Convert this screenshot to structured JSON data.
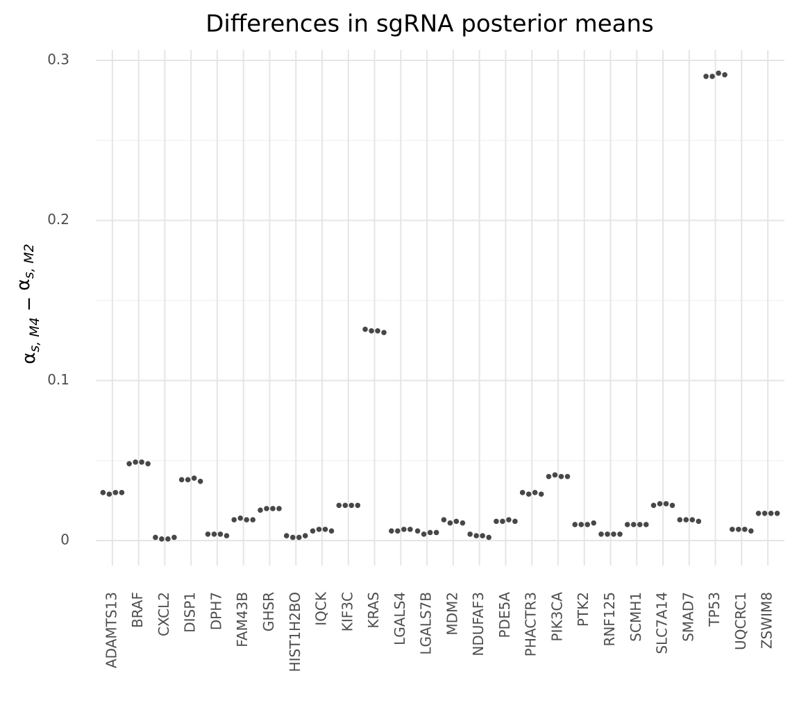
{
  "chart_data": {
    "type": "strip",
    "title": "Differences in sgRNA posterior means",
    "y_label": [
      "α",
      "s, M4",
      " − ",
      "α",
      "s, M2"
    ],
    "categories": [
      "ADAMTS13",
      "BRAF",
      "CXCL2",
      "DISP1",
      "DPH7",
      "FAM43B",
      "GHSR",
      "HIST1H2BO",
      "IQCK",
      "KIF3C",
      "KRAS",
      "LGALS4",
      "LGALS7B",
      "MDM2",
      "NDUFAF3",
      "PDE5A",
      "PHACTR3",
      "PIK3CA",
      "PTK2",
      "RNF125",
      "SCMH1",
      "SLC7A14",
      "SMAD7",
      "TP53",
      "UQCRC1",
      "ZSWIM8"
    ],
    "values": [
      [
        0.03,
        0.029,
        0.03,
        0.03
      ],
      [
        0.048,
        0.049,
        0.049,
        0.048
      ],
      [
        0.002,
        0.001,
        0.001,
        0.002
      ],
      [
        0.038,
        0.038,
        0.039,
        0.037
      ],
      [
        0.004,
        0.004,
        0.004,
        0.003
      ],
      [
        0.013,
        0.014,
        0.013,
        0.013
      ],
      [
        0.019,
        0.02,
        0.02,
        0.02
      ],
      [
        0.003,
        0.002,
        0.002,
        0.003
      ],
      [
        0.006,
        0.007,
        0.007,
        0.006
      ],
      [
        0.022,
        0.022,
        0.022,
        0.022
      ],
      [
        0.132,
        0.131,
        0.131,
        0.13
      ],
      [
        0.006,
        0.006,
        0.007,
        0.007
      ],
      [
        0.006,
        0.004,
        0.005,
        0.005
      ],
      [
        0.013,
        0.011,
        0.012,
        0.011
      ],
      [
        0.004,
        0.003,
        0.003,
        0.002
      ],
      [
        0.012,
        0.012,
        0.013,
        0.012
      ],
      [
        0.03,
        0.029,
        0.03,
        0.029
      ],
      [
        0.04,
        0.041,
        0.04,
        0.04
      ],
      [
        0.01,
        0.01,
        0.01,
        0.011
      ],
      [
        0.004,
        0.004,
        0.004,
        0.004
      ],
      [
        0.01,
        0.01,
        0.01,
        0.01
      ],
      [
        0.022,
        0.023,
        0.023,
        0.022
      ],
      [
        0.013,
        0.013,
        0.013,
        0.012
      ],
      [
        0.29,
        0.29,
        0.292,
        0.291
      ],
      [
        0.007,
        0.007,
        0.007,
        0.006
      ],
      [
        0.017,
        0.017,
        0.017,
        0.017
      ]
    ],
    "color": "#333333",
    "ylim": [
      -0.0156,
      0.3065
    ],
    "yticks": [
      0,
      0.1,
      0.2,
      0.3
    ],
    "minor_yticks": [
      0.05,
      0.15,
      0.25
    ],
    "grid": true
  }
}
